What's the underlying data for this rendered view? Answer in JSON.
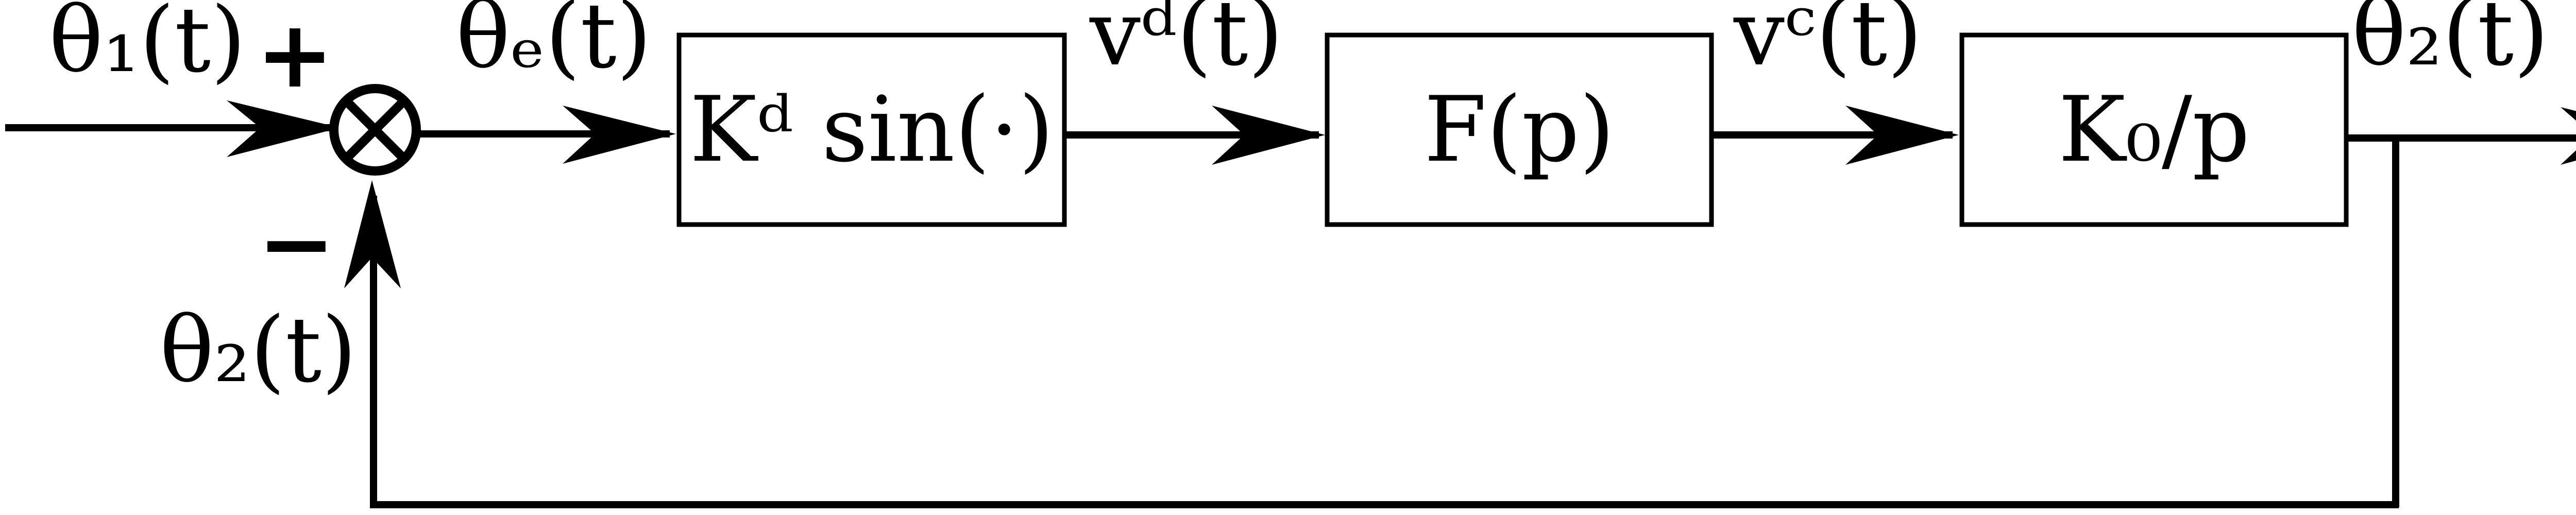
{
  "signals": {
    "theta1": "θ₁(t)",
    "theta_e": "θₑ(t)",
    "v_d": "vᵈ(t)",
    "v_c": "vᶜ(t)",
    "theta2_out": "θ₂(t)",
    "theta2_feedback": "θ₂(t)"
  },
  "blocks": {
    "detector": "Kᵈ sin(·)",
    "filter": "F(p)",
    "vco": "K₀/p"
  },
  "summing_junction": {
    "plus_sign": "+",
    "minus_sign": "−"
  }
}
